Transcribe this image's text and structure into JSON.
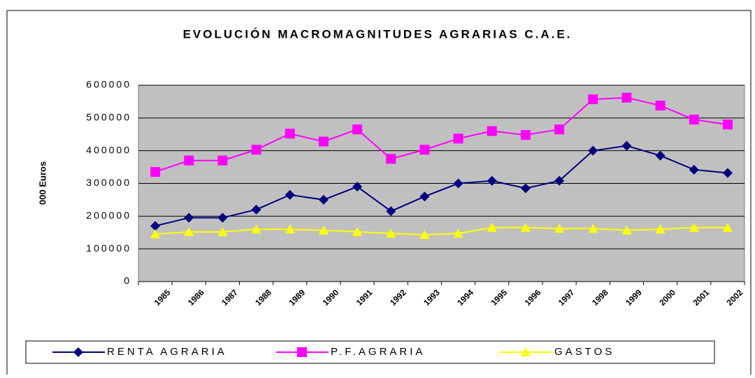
{
  "chart_data": {
    "type": "line",
    "title": "EVOLUCIÓN MACROMAGNITUDES AGRARIAS C.A.E.",
    "y_label": "000 Euros",
    "categories": [
      "1985",
      "1986",
      "1987",
      "1988",
      "1989",
      "1990",
      "1991",
      "1992",
      "1993",
      "1994",
      "1995",
      "1996",
      "1997",
      "1998",
      "1999",
      "2000",
      "2001",
      "2002"
    ],
    "series": [
      {
        "name": "RENTA AGRARIA",
        "color": "#000080",
        "marker": "diamond",
        "values": [
          170000,
          195000,
          195000,
          220000,
          265000,
          250000,
          290000,
          215000,
          260000,
          300000,
          308000,
          285000,
          308000,
          400000,
          415000,
          385000,
          342000,
          332000
        ]
      },
      {
        "name": "P.F.AGRARIA",
        "color": "#ff00ff",
        "marker": "square",
        "values": [
          335000,
          370000,
          370000,
          403000,
          452000,
          428000,
          465000,
          375000,
          403000,
          437000,
          460000,
          448000,
          465000,
          557000,
          562000,
          538000,
          495000,
          480000
        ]
      },
      {
        "name": "GASTOS",
        "color": "#ffff00",
        "marker": "triangle",
        "values": [
          145000,
          152000,
          152000,
          160000,
          160000,
          157000,
          152000,
          147000,
          143000,
          147000,
          165000,
          165000,
          162000,
          162000,
          157000,
          160000,
          165000,
          165000
        ]
      }
    ],
    "ylim": [
      0,
      600000
    ],
    "yticks": [
      0,
      100000,
      200000,
      300000,
      400000,
      500000,
      600000
    ],
    "grid": true
  }
}
